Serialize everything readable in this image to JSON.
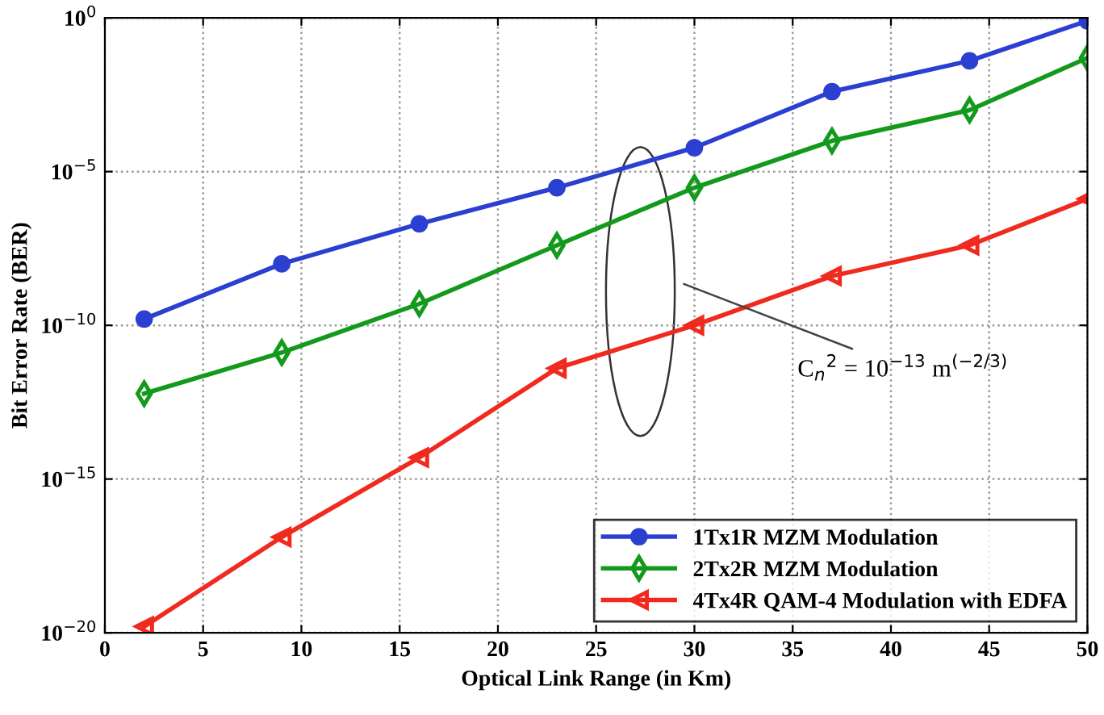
{
  "chart_data": {
    "type": "line",
    "xlabel": "Optical Link Range (in Km)",
    "ylabel": "Bit Error Rate (BER)",
    "x": [
      2,
      9,
      16,
      23,
      30,
      37,
      44,
      50
    ],
    "series": [
      {
        "name": "1Tx1R MZM Modulation",
        "color": "#2b3fd1",
        "marker": "circle",
        "values": [
          1.6e-10,
          1e-08,
          2e-07,
          3e-06,
          6e-05,
          0.004,
          0.04,
          0.8
        ]
      },
      {
        "name": "2Tx2R MZM Modulation",
        "color": "#139a1c",
        "marker": "diamond",
        "values": [
          6e-13,
          1.3e-11,
          5e-10,
          4e-08,
          3e-06,
          0.0001,
          0.001,
          0.05
        ]
      },
      {
        "name": "4Tx4R QAM-4 Modulation with EDFA",
        "color": "#f02a1e",
        "marker": "triangle",
        "values": [
          1.6e-20,
          1.3e-17,
          5e-15,
          4e-12,
          1e-10,
          4e-09,
          4e-08,
          1.3e-06
        ]
      }
    ],
    "xlim": [
      0,
      50
    ],
    "xticks": [
      0,
      5,
      10,
      15,
      20,
      25,
      30,
      35,
      40,
      45,
      50
    ],
    "log": true,
    "ylim": [
      1e-20,
      1
    ],
    "yticks": [
      {
        "value": 1e-20,
        "label": "10$^{−20}$"
      },
      {
        "value": 1e-15,
        "label": "10$^{−15}$"
      },
      {
        "value": 1e-10,
        "label": "10$^{−10}$"
      },
      {
        "value": 1e-05,
        "label": "10$^{−5}$"
      },
      {
        "value": 1,
        "label": "10$^{0}$"
      }
    ],
    "grid": true,
    "legend": "bottom right",
    "line_style": "solid",
    "annotations": [
      "C$_{n}$$^{2}$ = 10$^{−13}$ m$^{(−2/3)}$"
    ]
  }
}
